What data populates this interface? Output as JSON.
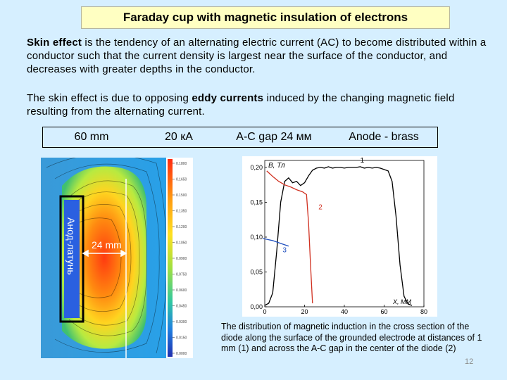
{
  "title": "Faraday cup with magnetic insulation of electrons",
  "paragraph1": {
    "bold": "Skin effect",
    "rest": " is the tendency of an alternating electric current (AC) to become distributed within a conductor such that the current density is largest near the surface of the conductor, and decreases with greater depths in the conductor."
  },
  "paragraph2": {
    "before": "The skin effect is due to opposing ",
    "bold": "eddy currents",
    "after": " induced by the changing magnetic field resulting from the alternating current."
  },
  "params": [
    "60 mm",
    "20 кА",
    "A-C gap 24 мм",
    "Anode - brass"
  ],
  "simulation": {
    "anode_label": "Анод-латунь",
    "gap_label": "24 mm",
    "colorbar_ticks": [
      "0.1800",
      "0.1650",
      "0.1500",
      "0.1350",
      "0.1200",
      "0.1050",
      "0.0900",
      "0.0750",
      "0.0600",
      "0.0450",
      "0.0300",
      "0.0150",
      "0.0000"
    ]
  },
  "chart_data": {
    "type": "line",
    "title": "",
    "xlabel": "X, MM",
    "ylabel": "B, Тл",
    "xlim": [
      0,
      80
    ],
    "ylim": [
      0,
      0.21
    ],
    "x_ticks": [
      "0",
      "20",
      "40",
      "60",
      "80"
    ],
    "y_ticks": [
      "0,00",
      "0,05",
      "0,10",
      "0,15",
      "0,20"
    ],
    "grid": false,
    "series": [
      {
        "name": "1",
        "color": "#000000",
        "points": [
          [
            0,
            0.002
          ],
          [
            2,
            0.005
          ],
          [
            4,
            0.02
          ],
          [
            6,
            0.08
          ],
          [
            8,
            0.15
          ],
          [
            10,
            0.18
          ],
          [
            12,
            0.185
          ],
          [
            14,
            0.178
          ],
          [
            16,
            0.18
          ],
          [
            18,
            0.174
          ],
          [
            20,
            0.178
          ],
          [
            22,
            0.188
          ],
          [
            24,
            0.196
          ],
          [
            26,
            0.199
          ],
          [
            28,
            0.2
          ],
          [
            30,
            0.199
          ],
          [
            32,
            0.201
          ],
          [
            34,
            0.199
          ],
          [
            36,
            0.2
          ],
          [
            38,
            0.2
          ],
          [
            40,
            0.199
          ],
          [
            42,
            0.2
          ],
          [
            44,
            0.2
          ],
          [
            46,
            0.2
          ],
          [
            48,
            0.201
          ],
          [
            50,
            0.199
          ],
          [
            52,
            0.2
          ],
          [
            54,
            0.199
          ],
          [
            56,
            0.2
          ],
          [
            58,
            0.199
          ],
          [
            60,
            0.197
          ],
          [
            62,
            0.195
          ],
          [
            64,
            0.18
          ],
          [
            66,
            0.13
          ],
          [
            68,
            0.06
          ],
          [
            70,
            0.015
          ],
          [
            72,
            0.004
          ],
          [
            74,
            0.002
          ]
        ]
      },
      {
        "name": "2",
        "color": "#d03020",
        "points": [
          [
            1,
            0.195
          ],
          [
            4,
            0.187
          ],
          [
            7,
            0.18
          ],
          [
            10,
            0.175
          ],
          [
            13,
            0.172
          ],
          [
            16,
            0.168
          ],
          [
            19,
            0.165
          ],
          [
            21,
            0.161
          ],
          [
            22,
            0.12
          ],
          [
            23,
            0.06
          ],
          [
            24,
            0.005
          ]
        ]
      },
      {
        "name": "3",
        "color": "#1f4fbf",
        "points": [
          [
            -1,
            0.098
          ],
          [
            4,
            0.095
          ],
          [
            9,
            0.09
          ],
          [
            12,
            0.087
          ]
        ]
      }
    ],
    "annotations": [
      "1",
      "2",
      "3"
    ]
  },
  "caption": "The distribution of magnetic induction in the cross section of the diode along the surface of the grounded electrode at distances of 1 mm (1) and across the A-C gap in the center of the diode (2)",
  "page_number": "12"
}
